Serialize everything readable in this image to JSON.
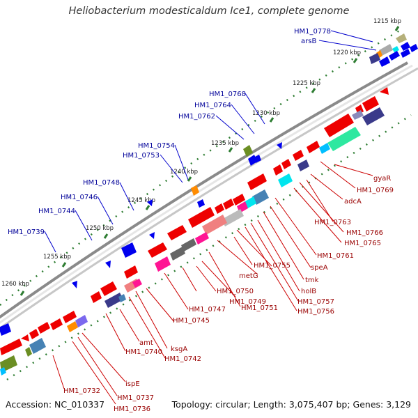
{
  "title": "Heliobacterium modesticaldum Ice1, complete genome",
  "accession": "Accession: NC_010337",
  "summary": "Topology: circular; Length: 3,075,407 bp; Genes: 3,129",
  "kbp_ticks": [
    "1215 kbp",
    "1220 kbp",
    "1225 kbp",
    "1230 kbp",
    "1235 kbp",
    "1240 kbp",
    "1245 kbp",
    "1250 kbp",
    "1255 kbp",
    "1260 kbp"
  ],
  "outer_gene_labels": [
    "HM1_0778",
    "arsB",
    "HM1_0768",
    "HM1_0764",
    "HM1_0762",
    "HM1_0754",
    "HM1_0753",
    "HM1_0748",
    "HM1_0746",
    "HM1_0744",
    "HM1_0739"
  ],
  "inner_gene_labels": [
    "gyaR",
    "HM1_0769",
    "adcA",
    "HM1_0763",
    "HM1_0766",
    "HM1_0765",
    "HM1_0761",
    "speA",
    "tmk",
    "holB",
    "HM1_0757",
    "HM1_0756",
    "HM1_0755",
    "metG",
    "HM1_0751",
    "HM1_0749",
    "HM1_0750",
    "HM1_0747",
    "HM1_0745",
    "ksgA",
    "HM1_0742",
    "amt",
    "HM1_0740",
    "ispE",
    "HM1_0737",
    "HM1_0736",
    "HM1_0732"
  ],
  "colors": {
    "forward_strand": "#0000ee",
    "reverse_strand": "#ee0000",
    "backbone": "#888888",
    "tick": "#2e7d32",
    "outer_label": "#000099",
    "inner_label": "#990000"
  }
}
